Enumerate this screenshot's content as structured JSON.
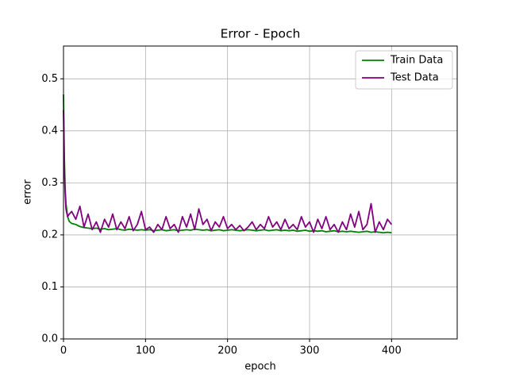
{
  "chart_data": {
    "type": "line",
    "title": "Error - Epoch",
    "xlabel": "epoch",
    "ylabel": "error",
    "x": [
      0,
      1,
      2,
      3,
      5,
      7,
      10,
      15,
      20,
      25,
      30,
      35,
      40,
      45,
      50,
      55,
      60,
      65,
      70,
      75,
      80,
      85,
      90,
      95,
      100,
      105,
      110,
      115,
      120,
      125,
      130,
      135,
      140,
      145,
      150,
      155,
      160,
      165,
      170,
      175,
      180,
      185,
      190,
      195,
      200,
      205,
      210,
      215,
      220,
      225,
      230,
      235,
      240,
      245,
      250,
      255,
      260,
      265,
      270,
      275,
      280,
      285,
      290,
      295,
      300,
      305,
      310,
      315,
      320,
      325,
      330,
      335,
      340,
      345,
      350,
      355,
      360,
      365,
      370,
      375,
      380,
      385,
      390,
      395,
      400
    ],
    "series": [
      {
        "name": "Train Data",
        "color": "#008000",
        "values": [
          0.47,
          0.35,
          0.29,
          0.26,
          0.235,
          0.226,
          0.222,
          0.22,
          0.216,
          0.214,
          0.213,
          0.212,
          0.213,
          0.211,
          0.212,
          0.21,
          0.211,
          0.212,
          0.21,
          0.209,
          0.211,
          0.21,
          0.209,
          0.21,
          0.209,
          0.21,
          0.208,
          0.209,
          0.21,
          0.208,
          0.209,
          0.21,
          0.208,
          0.209,
          0.21,
          0.209,
          0.211,
          0.21,
          0.209,
          0.21,
          0.208,
          0.209,
          0.21,
          0.208,
          0.209,
          0.21,
          0.209,
          0.208,
          0.209,
          0.21,
          0.209,
          0.208,
          0.209,
          0.21,
          0.208,
          0.209,
          0.21,
          0.208,
          0.209,
          0.208,
          0.209,
          0.207,
          0.208,
          0.209,
          0.207,
          0.208,
          0.207,
          0.208,
          0.206,
          0.207,
          0.208,
          0.206,
          0.207,
          0.206,
          0.207,
          0.206,
          0.205,
          0.206,
          0.207,
          0.205,
          0.206,
          0.205,
          0.204,
          0.205,
          0.204
        ]
      },
      {
        "name": "Test Data",
        "color": "#800080",
        "values": [
          0.44,
          0.33,
          0.28,
          0.25,
          0.235,
          0.24,
          0.245,
          0.23,
          0.255,
          0.215,
          0.24,
          0.21,
          0.225,
          0.205,
          0.23,
          0.215,
          0.24,
          0.21,
          0.225,
          0.212,
          0.235,
          0.208,
          0.22,
          0.245,
          0.21,
          0.215,
          0.205,
          0.22,
          0.21,
          0.235,
          0.212,
          0.22,
          0.205,
          0.235,
          0.215,
          0.24,
          0.21,
          0.25,
          0.22,
          0.23,
          0.208,
          0.225,
          0.215,
          0.235,
          0.212,
          0.22,
          0.21,
          0.218,
          0.208,
          0.215,
          0.225,
          0.21,
          0.22,
          0.212,
          0.235,
          0.215,
          0.225,
          0.21,
          0.23,
          0.212,
          0.22,
          0.21,
          0.235,
          0.215,
          0.225,
          0.205,
          0.23,
          0.212,
          0.235,
          0.21,
          0.22,
          0.205,
          0.225,
          0.21,
          0.24,
          0.215,
          0.245,
          0.21,
          0.22,
          0.26,
          0.205,
          0.225,
          0.21,
          0.23,
          0.22
        ]
      }
    ],
    "xlim": [
      0,
      480
    ],
    "ylim": [
      0,
      0.563
    ],
    "xticks": [
      0,
      100,
      200,
      300,
      400
    ],
    "yticks": [
      {
        "value": 0,
        "label": "0.0"
      },
      0.1,
      0.2,
      0.3,
      0.4,
      0.5
    ],
    "grid": true,
    "legend": "upper right"
  }
}
